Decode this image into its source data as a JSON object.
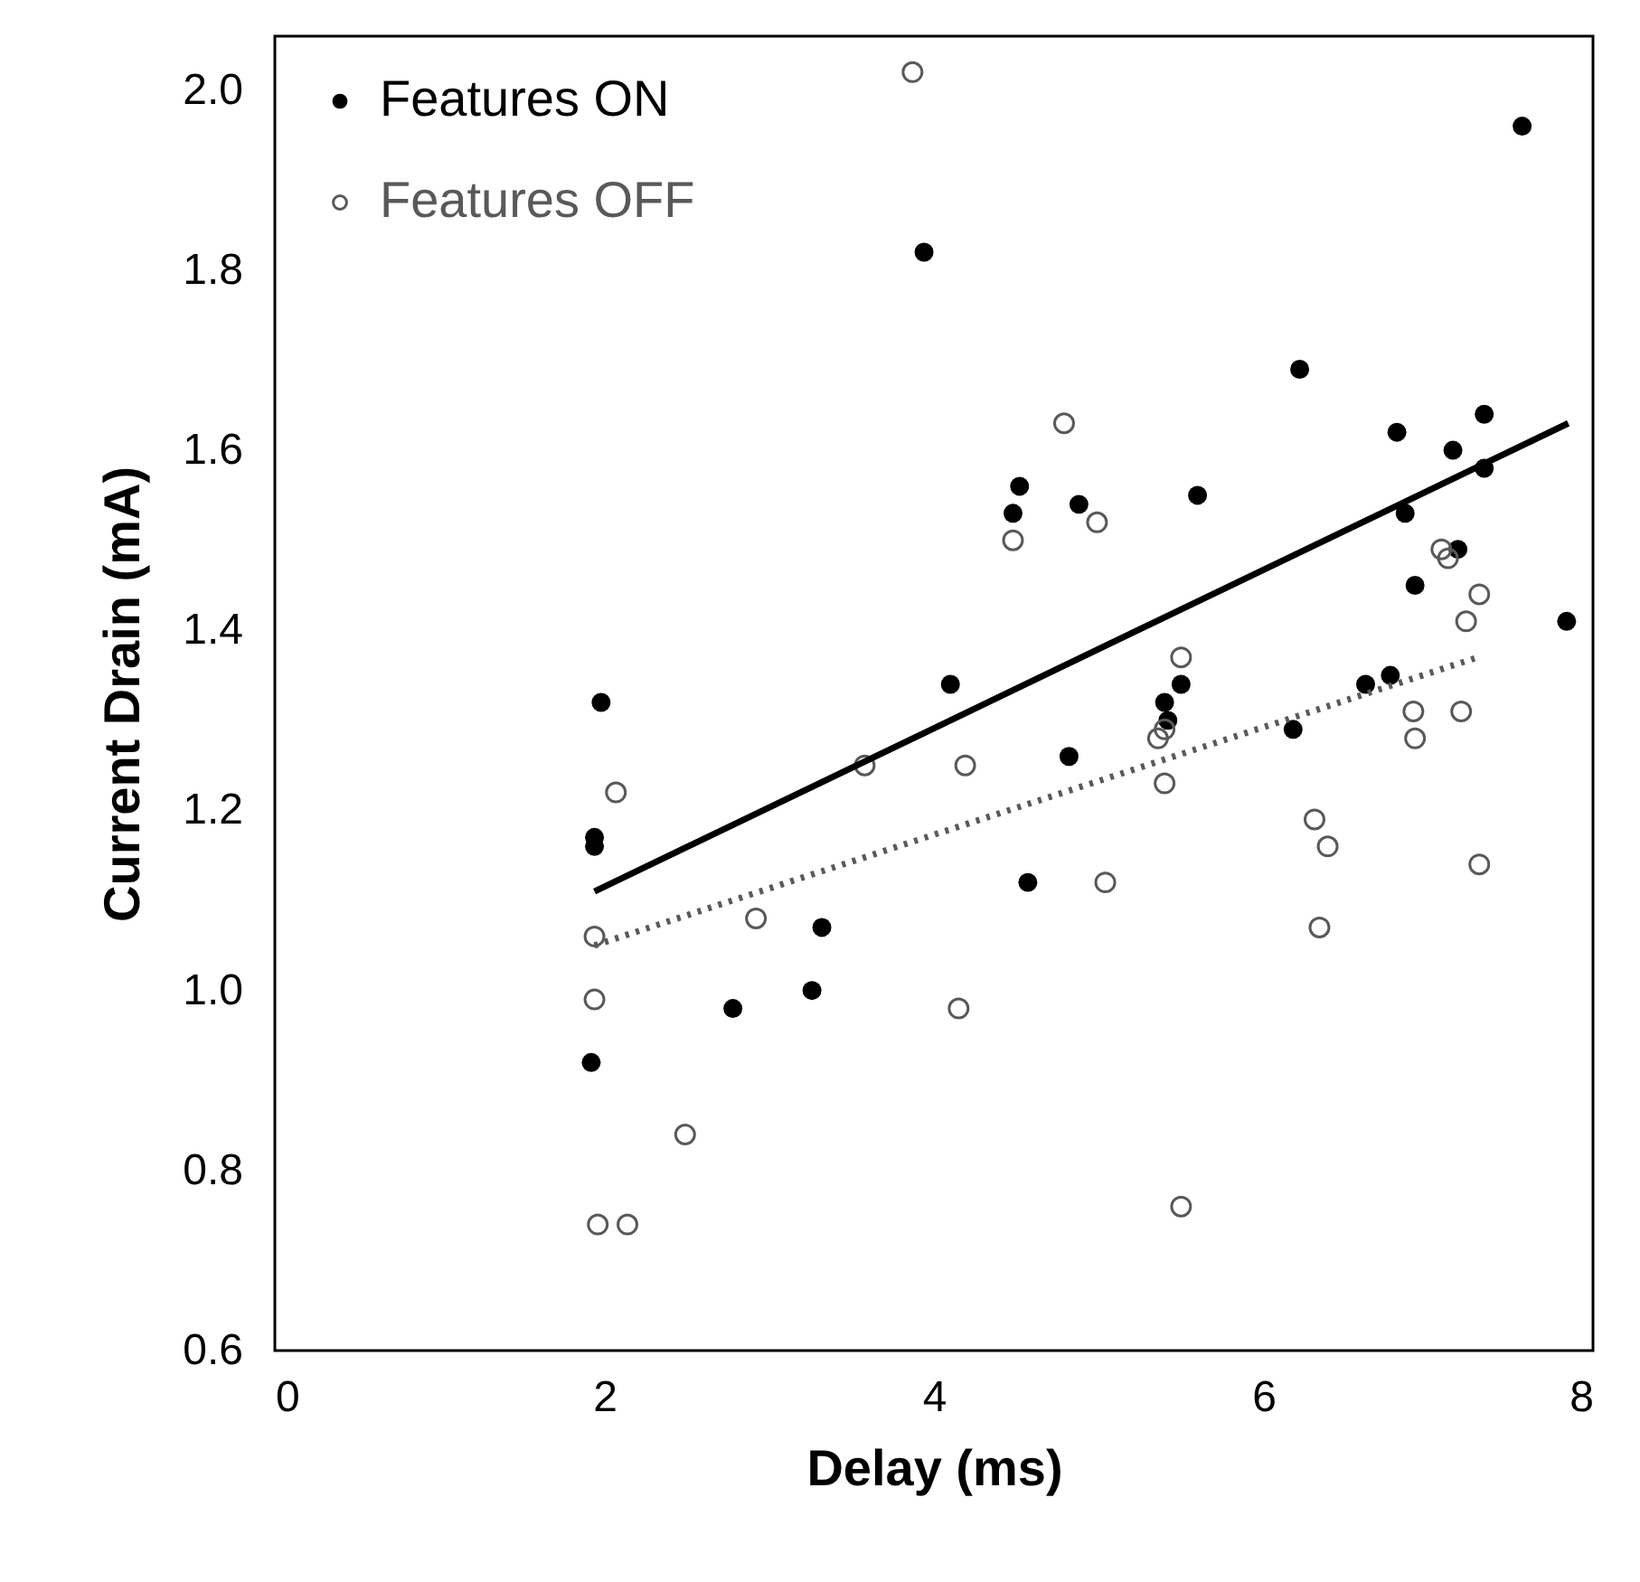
{
  "chart_data": {
    "type": "scatter",
    "xlabel": "Delay (ms)",
    "ylabel": "Current Drain (mA)",
    "xlim": [
      0,
      8
    ],
    "xticks": [
      0,
      2,
      4,
      6,
      8
    ],
    "ylim": [
      0.6,
      2.06
    ],
    "yticks": [
      {
        "value": 0.6,
        "label": "0.6"
      },
      {
        "value": 0.8,
        "label": "0.8"
      },
      {
        "value": 1.0,
        "label": "1.0"
      },
      {
        "value": 1.2,
        "label": "1.2"
      },
      {
        "value": 1.4,
        "label": "1.4"
      },
      {
        "value": 1.6,
        "label": "1.6"
      },
      {
        "value": 1.8,
        "label": "1.8"
      },
      {
        "value": 2.0,
        "label": "2.0"
      }
    ],
    "grid": false,
    "legend": "top left",
    "marker": "circle",
    "series": [
      {
        "name": "Features ON",
        "color": "#000000",
        "x": [
          1.98,
          1.94,
          1.94,
          3.32,
          3.26,
          2.78,
          1.92,
          6.22,
          6.81,
          7.34,
          7.15,
          7.34,
          6.86,
          7.18,
          6.92,
          7.84,
          4.52,
          4.48,
          4.88,
          5.6,
          4.1,
          5.5,
          5.4,
          5.42,
          4.82,
          4.57,
          6.18,
          6.62,
          6.77,
          3.94,
          7.57
        ],
        "values": [
          1.32,
          1.16,
          1.17,
          1.07,
          1.0,
          0.98,
          0.92,
          1.69,
          1.62,
          1.64,
          1.6,
          1.58,
          1.53,
          1.49,
          1.45,
          1.41,
          1.56,
          1.53,
          1.54,
          1.55,
          1.34,
          1.34,
          1.32,
          1.3,
          1.26,
          1.12,
          1.29,
          1.34,
          1.35,
          1.82,
          1.96
        ]
      },
      {
        "name": "Features OFF",
        "color": "#595959",
        "x": [
          2.07,
          3.58,
          2.92,
          1.94,
          1.94,
          2.49,
          1.96,
          2.14,
          4.79,
          4.48,
          4.99,
          7.08,
          7.12,
          7.31,
          7.23,
          5.5,
          5.4,
          5.36,
          5.4,
          4.19,
          5.04,
          6.91,
          6.92,
          7.2,
          6.31,
          6.39,
          7.31,
          6.34,
          4.15,
          5.5,
          3.87
        ],
        "values": [
          1.22,
          1.25,
          1.08,
          1.06,
          0.99,
          0.84,
          0.74,
          0.74,
          1.63,
          1.5,
          1.52,
          1.49,
          1.48,
          1.44,
          1.41,
          1.37,
          1.29,
          1.28,
          1.23,
          1.25,
          1.12,
          1.31,
          1.28,
          1.31,
          1.19,
          1.16,
          1.14,
          1.07,
          0.98,
          0.76,
          2.02
        ]
      },
      {
        "type": "line",
        "color": "#000000",
        "line_style": "solid",
        "marker": "none",
        "x": [
          1.94,
          7.85
        ],
        "values": [
          1.11,
          1.63
        ]
      },
      {
        "type": "line",
        "color": "#595959",
        "line_style": "dotted",
        "marker": "none",
        "x": [
          1.94,
          7.3
        ],
        "values": [
          1.05,
          1.37
        ]
      }
    ]
  }
}
